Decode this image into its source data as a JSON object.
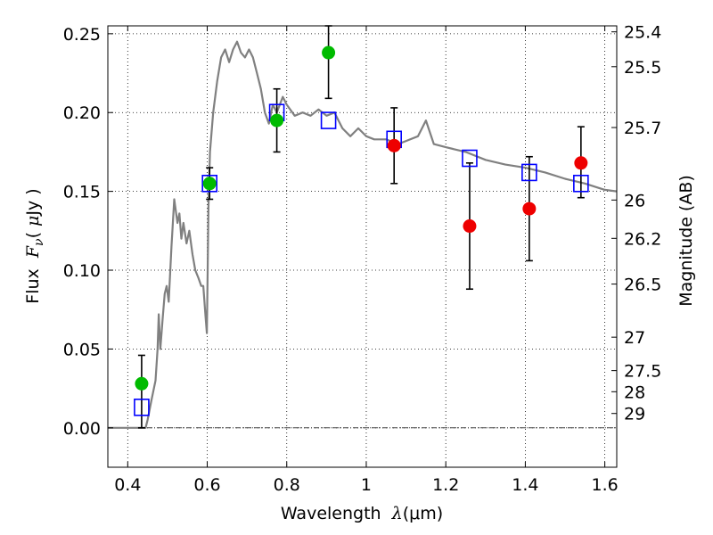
{
  "chart_data": {
    "type": "scatter",
    "title": "",
    "xlabel": "Wavelength  λ (μm)",
    "xlabel_parts": {
      "prefix": "Wavelength  ",
      "lambda": "λ",
      "unit": "(μm)"
    },
    "ylabel": "Flux  Fν  ( μJy )",
    "ylabel_parts": {
      "prefix": "Flux  ",
      "var": "F",
      "sub": "ν",
      "unit_open": "( ",
      "mu": "μ",
      "unit_close": "Jy )"
    },
    "ylabel_right": "Magnitude (AB)",
    "xlim": [
      0.35,
      1.63
    ],
    "ylim": [
      -0.025,
      0.255
    ],
    "grid": true,
    "x_ticks": [
      {
        "value": 0.4,
        "label": "0.4"
      },
      {
        "value": 0.6,
        "label": "0.6"
      },
      {
        "value": 0.8,
        "label": "0.8"
      },
      {
        "value": 1.0,
        "label": "1"
      },
      {
        "value": 1.2,
        "label": "1.2"
      },
      {
        "value": 1.4,
        "label": "1.4"
      },
      {
        "value": 1.6,
        "label": "1.6"
      }
    ],
    "y_ticks": [
      {
        "value": 0.0,
        "label": "0.00"
      },
      {
        "value": 0.05,
        "label": "0.05"
      },
      {
        "value": 0.1,
        "label": "0.10"
      },
      {
        "value": 0.15,
        "label": "0.15"
      },
      {
        "value": 0.2,
        "label": "0.20"
      },
      {
        "value": 0.25,
        "label": "0.25"
      }
    ],
    "mag_ticks": [
      {
        "label": "25.4",
        "flux": 0.2512
      },
      {
        "label": "25.5",
        "flux": 0.2291
      },
      {
        "label": "25.7",
        "flux": 0.1905
      },
      {
        "label": "26",
        "flux": 0.1445
      },
      {
        "label": "26.2",
        "flux": 0.1202
      },
      {
        "label": "26.5",
        "flux": 0.0912
      },
      {
        "label": "27",
        "flux": 0.0575
      },
      {
        "label": "27.5",
        "flux": 0.0363
      },
      {
        "label": "28",
        "flux": 0.0229
      },
      {
        "label": "29",
        "flux": 0.0091
      }
    ],
    "model_color": "#808080",
    "model_sed": [
      [
        0.35,
        0.0
      ],
      [
        0.425,
        0.0
      ],
      [
        0.435,
        0.0
      ],
      [
        0.445,
        0.0
      ],
      [
        0.45,
        0.005
      ],
      [
        0.46,
        0.018
      ],
      [
        0.47,
        0.03
      ],
      [
        0.475,
        0.05
      ],
      [
        0.478,
        0.072
      ],
      [
        0.482,
        0.05
      ],
      [
        0.488,
        0.07
      ],
      [
        0.493,
        0.085
      ],
      [
        0.498,
        0.09
      ],
      [
        0.503,
        0.08
      ],
      [
        0.51,
        0.115
      ],
      [
        0.517,
        0.145
      ],
      [
        0.525,
        0.13
      ],
      [
        0.53,
        0.136
      ],
      [
        0.535,
        0.12
      ],
      [
        0.54,
        0.13
      ],
      [
        0.548,
        0.117
      ],
      [
        0.555,
        0.125
      ],
      [
        0.563,
        0.11
      ],
      [
        0.57,
        0.1
      ],
      [
        0.578,
        0.095
      ],
      [
        0.585,
        0.09
      ],
      [
        0.59,
        0.09
      ],
      [
        0.596,
        0.07
      ],
      [
        0.599,
        0.06
      ],
      [
        0.603,
        0.14
      ],
      [
        0.607,
        0.175
      ],
      [
        0.615,
        0.2
      ],
      [
        0.625,
        0.22
      ],
      [
        0.635,
        0.235
      ],
      [
        0.645,
        0.24
      ],
      [
        0.655,
        0.232
      ],
      [
        0.665,
        0.24
      ],
      [
        0.675,
        0.245
      ],
      [
        0.685,
        0.238
      ],
      [
        0.695,
        0.235
      ],
      [
        0.705,
        0.24
      ],
      [
        0.715,
        0.235
      ],
      [
        0.725,
        0.225
      ],
      [
        0.735,
        0.215
      ],
      [
        0.745,
        0.2
      ],
      [
        0.755,
        0.193
      ],
      [
        0.765,
        0.205
      ],
      [
        0.775,
        0.2
      ],
      [
        0.79,
        0.21
      ],
      [
        0.8,
        0.205
      ],
      [
        0.82,
        0.198
      ],
      [
        0.84,
        0.2
      ],
      [
        0.86,
        0.198
      ],
      [
        0.88,
        0.202
      ],
      [
        0.9,
        0.198
      ],
      [
        0.92,
        0.2
      ],
      [
        0.94,
        0.19
      ],
      [
        0.96,
        0.185
      ],
      [
        0.98,
        0.19
      ],
      [
        1.0,
        0.185
      ],
      [
        1.02,
        0.183
      ],
      [
        1.05,
        0.183
      ],
      [
        1.08,
        0.18
      ],
      [
        1.1,
        0.182
      ],
      [
        1.13,
        0.185
      ],
      [
        1.15,
        0.195
      ],
      [
        1.17,
        0.18
      ],
      [
        1.2,
        0.178
      ],
      [
        1.25,
        0.175
      ],
      [
        1.3,
        0.17
      ],
      [
        1.35,
        0.167
      ],
      [
        1.4,
        0.165
      ],
      [
        1.45,
        0.162
      ],
      [
        1.5,
        0.158
      ],
      [
        1.55,
        0.155
      ],
      [
        1.6,
        0.151
      ],
      [
        1.63,
        0.15
      ]
    ],
    "model_points": [
      {
        "x": 0.435,
        "y": 0.013
      },
      {
        "x": 0.606,
        "y": 0.155
      },
      {
        "x": 0.775,
        "y": 0.2
      },
      {
        "x": 0.905,
        "y": 0.195
      },
      {
        "x": 1.07,
        "y": 0.183
      },
      {
        "x": 1.26,
        "y": 0.171
      },
      {
        "x": 1.41,
        "y": 0.162
      },
      {
        "x": 1.54,
        "y": 0.155
      }
    ],
    "model_point_color": "#0000ff",
    "series": [
      {
        "color": "#00bb00",
        "points": [
          {
            "x": 0.435,
            "y": 0.028,
            "err_low": 0.0,
            "err_high": 0.046
          },
          {
            "x": 0.606,
            "y": 0.155,
            "err_low": 0.145,
            "err_high": 0.165
          },
          {
            "x": 0.775,
            "y": 0.195,
            "err_low": 0.175,
            "err_high": 0.215
          },
          {
            "x": 0.905,
            "y": 0.238,
            "err_low": 0.209,
            "err_high": 0.255
          }
        ]
      },
      {
        "color": "#ee0000",
        "points": [
          {
            "x": 1.07,
            "y": 0.179,
            "err_low": 0.155,
            "err_high": 0.203
          },
          {
            "x": 1.26,
            "y": 0.128,
            "err_low": 0.088,
            "err_high": 0.168
          },
          {
            "x": 1.41,
            "y": 0.139,
            "err_low": 0.106,
            "err_high": 0.172
          },
          {
            "x": 1.54,
            "y": 0.168,
            "err_low": 0.146,
            "err_high": 0.191
          }
        ]
      }
    ]
  }
}
